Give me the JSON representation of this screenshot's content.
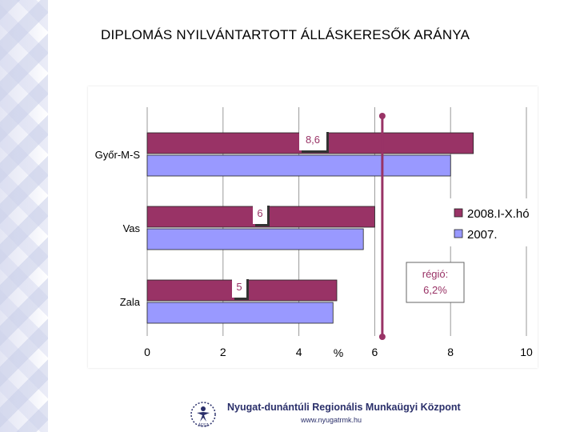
{
  "page": {
    "title": "DIPLOMÁS NYILVÁNTARTOTT ÁLLÁSKERESŐK ARÁNYA"
  },
  "footer": {
    "org_name": "Nyugat-dunántúli Regionális Munkaügyi Központ",
    "url": "www.nyugatrmk.hu",
    "logo_text": "ÁFSZ"
  },
  "colors": {
    "series_2008": "#993366",
    "series_2007": "#9999ff",
    "reference_line": "#993366"
  },
  "chart_data": {
    "type": "bar",
    "orientation": "horizontal",
    "categories": [
      "Győr-M-S",
      "Vas",
      "Zala"
    ],
    "series": [
      {
        "name": "2008.I-X.hó",
        "values": [
          8.6,
          6.0,
          5.0
        ],
        "color": "#993366"
      },
      {
        "name": "2007.",
        "values": [
          8.0,
          5.7,
          4.9
        ],
        "color": "#9999ff"
      }
    ],
    "data_labels": [
      "8,6",
      "6",
      "5"
    ],
    "xlim": [
      0,
      10
    ],
    "xticks": [
      0,
      2,
      4,
      6,
      8,
      10
    ],
    "x_tick_labels": [
      "0",
      "2",
      "4",
      "6",
      "8",
      "10"
    ],
    "xlabel": "%",
    "grid": "vertical",
    "legend": "right",
    "reference": {
      "value": 6.2,
      "label_line1": "régió:",
      "label_line2": "6,2%"
    }
  }
}
